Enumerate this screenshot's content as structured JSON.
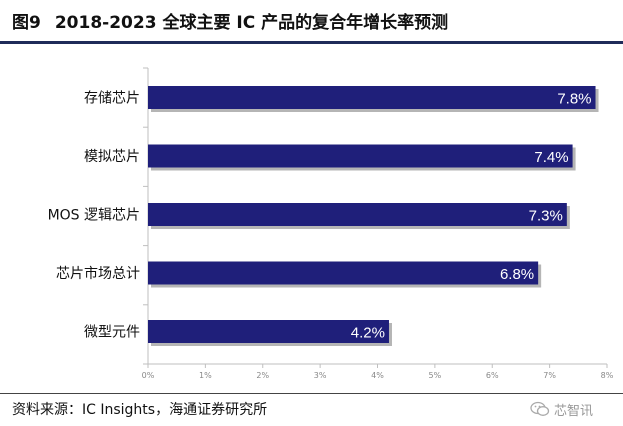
{
  "figure": {
    "number": "图9",
    "title": "2018-2023 全球主要 IC 产品的复合年增长率预测"
  },
  "source": "资料来源：IC Insights，海通证券研究所",
  "watermark": "芯智讯",
  "colors": {
    "bar": "#1f1f7a",
    "rule": "#1f2b59"
  },
  "chart_data": {
    "type": "bar",
    "orientation": "horizontal",
    "categories": [
      "存储芯片",
      "模拟芯片",
      "MOS 逻辑芯片",
      "芯片市场总计",
      "微型元件"
    ],
    "values": [
      7.8,
      7.4,
      7.3,
      6.8,
      4.2
    ],
    "value_labels": [
      "7.8%",
      "7.4%",
      "7.3%",
      "6.8%",
      "4.2%"
    ],
    "xlim": [
      0,
      8
    ],
    "xticks": [
      "0%",
      "1%",
      "2%",
      "3%",
      "4%",
      "5%",
      "6%",
      "7%",
      "8%"
    ],
    "grid": false,
    "legend": "none"
  }
}
